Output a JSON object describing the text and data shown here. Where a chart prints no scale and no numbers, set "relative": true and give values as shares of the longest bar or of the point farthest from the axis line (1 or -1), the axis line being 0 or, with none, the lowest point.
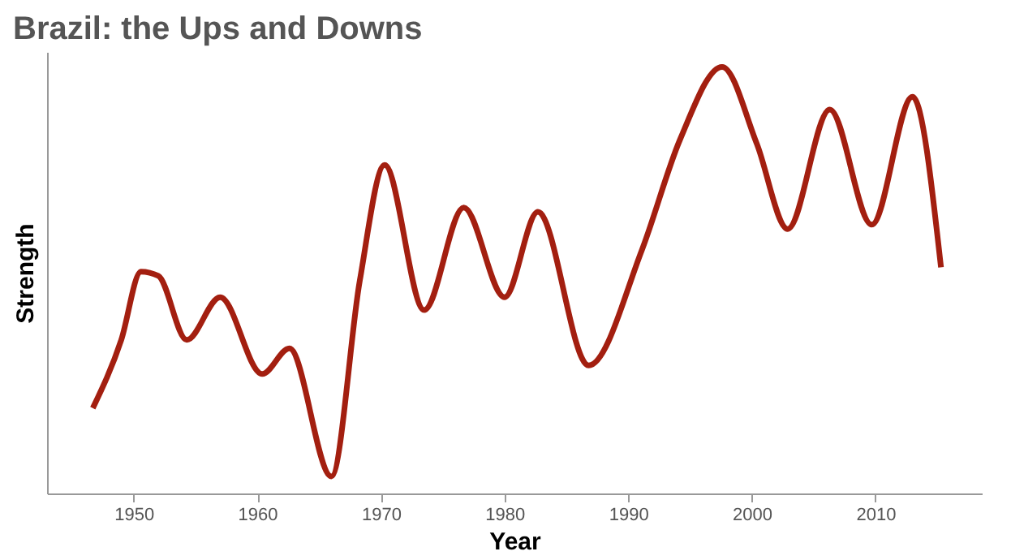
{
  "chart_data": {
    "type": "line",
    "title": "Brazil: the Ups and Downs",
    "xlabel": "Year",
    "ylabel": "Strength",
    "relative": true,
    "x": [
      1946.7,
      1949,
      1950.6,
      1952,
      1954.3,
      1957,
      1960.4,
      1962.6,
      1966,
      1968.3,
      1970.3,
      1973.5,
      1976.7,
      1980,
      1982.7,
      1986.8,
      1991.1,
      1994.2,
      1997.6,
      2000.4,
      2002.9,
      2006.3,
      2009.7,
      2013,
      2015.3
    ],
    "series": [
      {
        "color": "#a31f10",
        "values": [
          0.2,
          0.36,
          0.52,
          0.51,
          0.36,
          0.46,
          0.28,
          0.34,
          0.04,
          0.5,
          0.77,
          0.43,
          0.67,
          0.46,
          0.66,
          0.3,
          0.57,
          0.83,
          1.0,
          0.82,
          0.62,
          0.9,
          0.63,
          0.93,
          0.53
        ]
      }
    ],
    "xlim": [
      1943,
      2018.6
    ],
    "xticks": [
      1950,
      1960,
      1970,
      1980,
      1990,
      2000,
      2010
    ],
    "grid": false,
    "legend": false,
    "line_style": "solid",
    "marker": "none"
  }
}
